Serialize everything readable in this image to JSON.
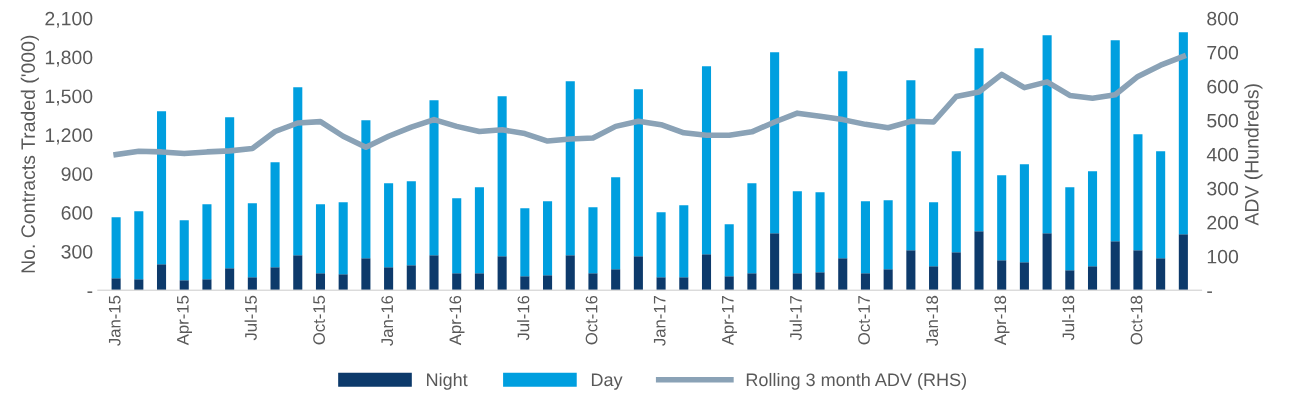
{
  "chart_data": {
    "type": "bar",
    "stacked": true,
    "ylabel": "No. Contracts Traded ('000)",
    "y2label": "ADV (Hundreds)",
    "categories": [
      "Jan-15",
      null,
      null,
      "Apr-15",
      null,
      null,
      "Jul-15",
      null,
      null,
      "Oct-15",
      null,
      null,
      "Jan-16",
      null,
      null,
      "Apr-16",
      null,
      null,
      "Jul-16",
      null,
      null,
      "Oct-16",
      null,
      null,
      "Jan-17",
      null,
      null,
      "Apr-17",
      null,
      null,
      "Jul-17",
      null,
      null,
      "Oct-17",
      null,
      null,
      "Jan-18",
      null,
      null,
      "Apr-18",
      null,
      null,
      "Jul-18",
      null,
      null,
      "Oct-18",
      null,
      null
    ],
    "series": [
      {
        "name": "Night",
        "color": "#0d3a6b",
        "values": [
          93,
          85,
          201,
          77,
          85,
          170,
          100,
          178,
          270,
          131,
          124,
          247,
          178,
          193,
          270,
          131,
          131,
          262,
          108,
          116,
          270,
          131,
          162,
          262,
          100,
          100,
          278,
          108,
          131,
          440,
          131,
          139,
          247,
          131,
          162,
          309,
          185,
          293,
          456,
          232,
          216,
          440,
          154,
          185,
          378,
          309,
          247,
          432
        ]
      },
      {
        "name": "Day",
        "color": "#009fdf",
        "values": [
          471,
          525,
          1181,
          464,
          579,
          1166,
          572,
          810,
          1297,
          533,
          555,
          1065,
          648,
          648,
          1197,
          579,
          664,
          1236,
          525,
          571,
          1343,
          510,
          710,
          1290,
          502,
          556,
          1451,
          402,
          695,
          1397,
          633,
          618,
          1444,
          556,
          533,
          1312,
          494,
          780,
          1412,
          656,
          757,
          1529,
          641,
          734,
          1552,
          895,
          826,
          1560
        ]
      },
      {
        "name": "Rolling 3 month ADV (RHS)",
        "type": "line",
        "axis": "y2",
        "color": "#8aa2b6",
        "values": [
          399,
          409,
          407,
          402,
          407,
          410,
          417,
          467,
          492,
          496,
          453,
          421,
          453,
          480,
          502,
          482,
          467,
          472,
          461,
          439,
          445,
          448,
          482,
          497,
          487,
          463,
          456,
          456,
          466,
          495,
          521,
          512,
          502,
          488,
          478,
          497,
          495,
          570,
          583,
          635,
          596,
          613,
          573,
          565,
          575,
          629,
          662,
          688
        ]
      }
    ],
    "ylim": [
      0,
      2100
    ],
    "yticks": [
      {
        "value": 0,
        "label": "-"
      },
      300,
      600,
      900,
      {
        "value": 1200,
        "label": "1,200"
      },
      {
        "value": 1500,
        "label": "1,500"
      },
      {
        "value": 1800,
        "label": "1,800"
      },
      {
        "value": 2100,
        "label": "2,100"
      }
    ],
    "y2lim": [
      0,
      800
    ],
    "y2ticks": [
      {
        "value": 0,
        "label": "-"
      },
      100,
      200,
      300,
      400,
      500,
      600,
      700,
      800
    ],
    "grid": false,
    "legend": "bottom",
    "marker": "none",
    "line_style": "solid"
  }
}
